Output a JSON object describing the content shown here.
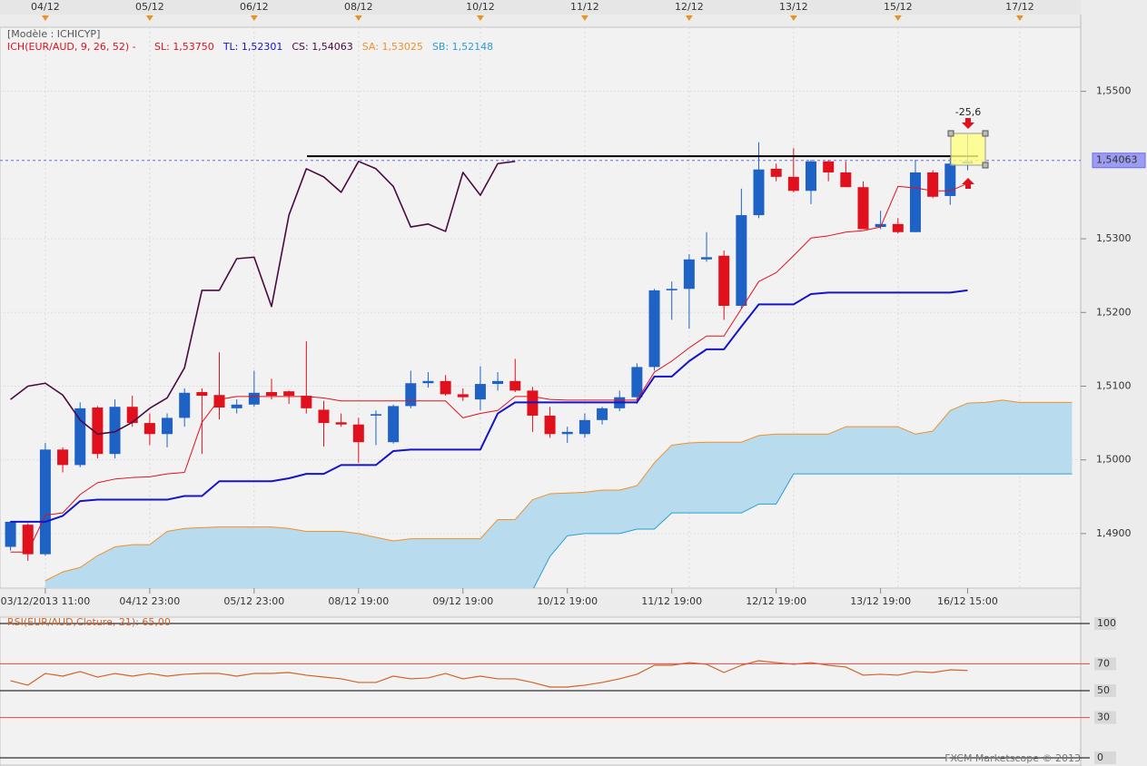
{
  "chart_data": [
    {
      "type": "candlestick",
      "model_label": "[Modèle : ICHICYP]",
      "indicator_label": "ICH(EUR/AUD, 9, 26, 52) -",
      "annotation": "-25,6",
      "categories": [
        null,
        null,
        "03/12/2013 11:00",
        null,
        null,
        null,
        null,
        null,
        "04/12 23:00",
        null,
        null,
        null,
        null,
        null,
        "05/12 23:00",
        null,
        null,
        null,
        null,
        null,
        "08/12 19:00",
        null,
        null,
        null,
        null,
        null,
        "09/12 19:00",
        null,
        null,
        null,
        null,
        null,
        "10/12 19:00",
        null,
        null,
        null,
        null,
        null,
        "11/12 19:00",
        null,
        null,
        null,
        null,
        null,
        "12/12 19:00",
        null,
        null,
        null,
        null,
        null,
        "13/12 19:00",
        null,
        null,
        null,
        null,
        "16/12 15:00",
        null,
        null,
        null,
        null,
        null,
        null
      ],
      "top_dates": [
        null,
        null,
        "04/12",
        null,
        null,
        null,
        null,
        null,
        "05/12",
        null,
        null,
        null,
        null,
        null,
        "06/12",
        null,
        null,
        null,
        null,
        null,
        "08/12",
        null,
        null,
        null,
        null,
        null,
        null,
        "10/12",
        null,
        null,
        null,
        null,
        null,
        "11/12",
        null,
        null,
        null,
        null,
        null,
        "12/12",
        null,
        null,
        null,
        null,
        null,
        "13/12",
        null,
        null,
        null,
        null,
        null,
        "15/12",
        null,
        null,
        null,
        null,
        null,
        null,
        "17/12",
        null,
        null,
        null
      ],
      "open": [
        1.4882,
        1.4912,
        1.4872,
        1.5014,
        1.4993,
        1.5071,
        1.5008,
        1.5072,
        1.505,
        1.5035,
        1.5057,
        1.5092,
        1.5088,
        1.507,
        1.5075,
        1.5092,
        1.5093,
        1.5087,
        1.5068,
        1.5051,
        1.5048,
        1.506,
        1.5024,
        1.5073,
        1.5104,
        1.5107,
        1.5089,
        1.5082,
        1.5103,
        1.5107,
        1.5094,
        1.506,
        1.5035,
        1.5035,
        1.5054,
        1.507,
        1.5085,
        1.5126,
        1.523,
        1.5232,
        1.5272,
        1.5277,
        1.5209,
        1.5332,
        1.5395,
        1.5384,
        1.5365,
        1.5405,
        1.539,
        1.537,
        1.5316,
        1.532,
        1.5309,
        1.539,
        1.5358,
        1.5402,
        null,
        null,
        null,
        null,
        null,
        null
      ],
      "high": [
        1.4917,
        1.4914,
        1.5023,
        1.5017,
        1.5078,
        1.5073,
        1.5082,
        1.5087,
        1.5063,
        1.5063,
        1.5097,
        1.5097,
        1.5146,
        1.5082,
        1.5121,
        1.511,
        1.5094,
        1.5161,
        1.508,
        1.5063,
        1.5057,
        1.5067,
        1.5075,
        1.5121,
        1.5119,
        1.5115,
        1.5097,
        1.5127,
        1.5119,
        1.5137,
        1.5099,
        1.5072,
        1.5045,
        1.5063,
        1.5072,
        1.5094,
        1.5131,
        1.5232,
        1.5242,
        1.5279,
        1.5309,
        1.5284,
        1.5368,
        1.5431,
        1.5402,
        1.5423,
        1.5407,
        1.5407,
        1.5405,
        1.5378,
        1.5338,
        1.5328,
        1.5407,
        1.5393,
        1.541,
        1.5442,
        null,
        null,
        null,
        null,
        null,
        null
      ],
      "low": [
        1.4877,
        1.4863,
        1.487,
        1.4983,
        1.499,
        1.5002,
        1.5002,
        1.5045,
        1.502,
        1.5017,
        1.5045,
        1.5008,
        1.5055,
        1.5063,
        1.5072,
        1.5082,
        1.5076,
        1.5063,
        1.5018,
        1.5045,
        1.4996,
        1.502,
        1.5022,
        1.507,
        1.5098,
        1.5087,
        1.508,
        1.5067,
        1.5094,
        1.5092,
        1.5038,
        1.503,
        1.5023,
        1.503,
        1.5048,
        1.5066,
        1.5076,
        1.5121,
        1.519,
        1.5178,
        1.5269,
        1.519,
        1.5205,
        1.5328,
        1.5378,
        1.5363,
        1.5347,
        1.5378,
        1.537,
        1.5313,
        1.5313,
        1.5307,
        1.5309,
        1.5355,
        1.5346,
        1.5393,
        null,
        null,
        null,
        null,
        null,
        null
      ],
      "close": [
        1.4916,
        1.4872,
        1.5014,
        1.4993,
        1.507,
        1.5008,
        1.5072,
        1.505,
        1.5035,
        1.5057,
        1.5091,
        1.5087,
        1.5071,
        1.5075,
        1.5091,
        1.5087,
        1.5087,
        1.507,
        1.505,
        1.5048,
        1.5024,
        1.5062,
        1.5073,
        1.5104,
        1.5107,
        1.5089,
        1.5085,
        1.5103,
        1.5107,
        1.5094,
        1.506,
        1.5035,
        1.5038,
        1.5054,
        1.507,
        1.5085,
        1.5126,
        1.523,
        1.5232,
        1.5272,
        1.5275,
        1.5209,
        1.5332,
        1.5394,
        1.5384,
        1.5365,
        1.5405,
        1.539,
        1.537,
        1.5313,
        1.532,
        1.5309,
        1.539,
        1.5357,
        1.5402,
        1.5405,
        null,
        null,
        null,
        null,
        null,
        null
      ],
      "up_color": "#1f62c6",
      "down_color": "#e0101c",
      "cloud_color": "#b8dcee",
      "series": [
        {
          "name": "SL: 1,53750",
          "color": "#e0101c",
          "width": 1,
          "values": [
            1.4875,
            1.4875,
            1.4925,
            1.4928,
            1.4953,
            1.4969,
            1.4974,
            1.4976,
            1.4977,
            1.4981,
            1.4983,
            1.5051,
            1.5082,
            1.5086,
            1.5086,
            1.5086,
            1.5086,
            1.5086,
            1.5084,
            1.508,
            1.508,
            1.508,
            1.508,
            1.508,
            1.508,
            1.508,
            1.5057,
            1.5063,
            1.5067,
            1.5086,
            1.5086,
            1.5082,
            1.5081,
            1.5081,
            1.5081,
            1.5081,
            1.5081,
            1.5119,
            1.5134,
            1.5152,
            1.5168,
            1.5168,
            1.5205,
            1.5242,
            1.5254,
            1.5277,
            1.5301,
            1.5304,
            1.5309,
            1.5311,
            1.5316,
            1.5371,
            1.5369,
            1.5365,
            1.5365,
            1.5375,
            null,
            null,
            null,
            null,
            null,
            null
          ]
        },
        {
          "name": "TL: 1,52301",
          "color": "#1414c8",
          "width": 2,
          "values": [
            1.4916,
            1.4916,
            1.4916,
            1.4924,
            1.4944,
            1.4946,
            1.4946,
            1.4946,
            1.4946,
            1.4946,
            1.4951,
            1.4951,
            1.4971,
            1.4971,
            1.4971,
            1.4971,
            1.4975,
            1.4981,
            1.4981,
            1.4993,
            1.4993,
            1.4993,
            1.5012,
            1.5014,
            1.5014,
            1.5014,
            1.5014,
            1.5014,
            1.5063,
            1.5078,
            1.5078,
            1.5078,
            1.5078,
            1.5078,
            1.5078,
            1.5078,
            1.5078,
            1.5113,
            1.5113,
            1.5134,
            1.515,
            1.515,
            1.5181,
            1.5211,
            1.5211,
            1.5211,
            1.5225,
            1.5227,
            1.5227,
            1.5227,
            1.5227,
            1.5227,
            1.5227,
            1.5227,
            1.5227,
            1.523,
            null,
            null,
            null,
            null,
            null,
            null
          ]
        },
        {
          "name": "CS: 1,54063",
          "color": "#4a0a40",
          "width": 1.6,
          "values": [
            1.5082,
            1.51,
            1.5104,
            1.5088,
            1.5054,
            1.5035,
            1.5038,
            1.5051,
            1.507,
            1.5084,
            1.5125,
            1.523,
            1.523,
            1.5273,
            1.5275,
            1.5208,
            1.5332,
            1.5395,
            1.5384,
            1.5363,
            1.5405,
            1.5395,
            1.5371,
            1.5316,
            1.532,
            1.531,
            1.539,
            1.5359,
            1.5402,
            1.5405,
            null,
            null,
            null,
            null,
            null,
            null,
            null,
            null,
            null,
            null,
            null,
            null,
            null,
            null,
            null,
            null,
            null,
            null,
            null,
            null,
            null,
            null,
            null,
            null,
            null,
            null,
            null,
            null,
            null,
            null,
            null,
            null
          ]
        },
        {
          "name": "SA: 1,53025",
          "color": "#f0902a",
          "width": 1,
          "values": [
            null,
            null,
            1.4836,
            1.4848,
            1.4854,
            1.487,
            1.4882,
            1.4885,
            1.4885,
            1.4903,
            1.4907,
            1.4908,
            1.4909,
            1.4909,
            1.4909,
            1.4909,
            1.4907,
            1.4903,
            1.4903,
            1.4903,
            1.49,
            1.4895,
            1.489,
            1.4893,
            1.4893,
            1.4893,
            1.4893,
            1.4893,
            1.4919,
            1.4919,
            1.4946,
            1.4954,
            1.4955,
            1.4956,
            1.4959,
            1.4959,
            1.4965,
            1.4996,
            1.502,
            1.5023,
            1.5024,
            1.5024,
            1.5024,
            1.5033,
            1.5035,
            1.5035,
            1.5035,
            1.5035,
            1.5045,
            1.5045,
            1.5045,
            1.5045,
            1.5035,
            1.5039,
            1.5067,
            1.5077,
            1.5078,
            1.5081,
            1.5078,
            1.5078,
            1.5078,
            1.5078
          ]
        },
        {
          "name": "SB: 1,52148",
          "color": "#2a9ed6",
          "width": 1,
          "values": [
            null,
            null,
            null,
            null,
            null,
            null,
            null,
            null,
            null,
            null,
            null,
            null,
            null,
            null,
            null,
            null,
            null,
            null,
            null,
            null,
            null,
            null,
            null,
            null,
            null,
            null,
            null,
            null,
            null,
            null,
            1.4823,
            1.4869,
            1.4897,
            1.49,
            1.49,
            1.49,
            1.4906,
            1.4906,
            1.4928,
            1.4928,
            1.4928,
            1.4928,
            1.4928,
            1.494,
            1.494,
            1.4981,
            1.4981,
            1.4981,
            1.4981,
            1.4981,
            1.4981,
            1.4981,
            1.4981,
            1.4981,
            1.4981,
            1.4981,
            1.4981,
            1.4981,
            1.4981,
            1.4981,
            1.4981,
            1.4981
          ]
        }
      ],
      "ylim": [
        1.4826,
        1.5587
      ],
      "yticks": [
        {
          "value": 1.49,
          "label": "1,4900"
        },
        {
          "value": 1.5,
          "label": "1,5000"
        },
        {
          "value": 1.51,
          "label": "1,5100"
        },
        {
          "value": 1.52,
          "label": "1,5200"
        },
        {
          "value": 1.53,
          "label": "1,5300"
        },
        {
          "value": 1.55,
          "label": "1,5500"
        }
      ],
      "grid": true,
      "current_price": {
        "value": 1.54063,
        "label": "1,54063"
      },
      "horizontal_line": 1.5412
    },
    {
      "type": "line",
      "title": "RSI(EUR/AUD,Cloture, 21): 65,00",
      "color": "#d0642a",
      "values": [
        57.4,
        54.1,
        62.8,
        60.8,
        64.2,
        60.1,
        62.8,
        60.8,
        62.8,
        60.8,
        62.2,
        62.8,
        62.8,
        60.8,
        62.8,
        62.8,
        63.5,
        61.5,
        60.1,
        58.8,
        56.1,
        56.1,
        60.8,
        58.8,
        59.5,
        62.8,
        58.8,
        60.8,
        58.8,
        58.8,
        56.1,
        52.7,
        52.7,
        54.1,
        56.1,
        58.8,
        62.2,
        68.9,
        68.9,
        70.9,
        69.6,
        63.5,
        68.9,
        72.3,
        70.9,
        69.6,
        70.9,
        68.9,
        67.6,
        61.5,
        62.2,
        61.5,
        64.2,
        63.5,
        65.5,
        65.0,
        null,
        null,
        null,
        null,
        null,
        null
      ],
      "ylim": [
        -5.4,
        104.7
      ],
      "yticks": [
        100,
        70,
        50,
        30,
        0
      ],
      "ytick_colors": [
        "#000000",
        "#e04848",
        "#000000",
        "#e04848",
        "#000000"
      ],
      "watermark": "FXCM Marketscope © 2013"
    }
  ]
}
